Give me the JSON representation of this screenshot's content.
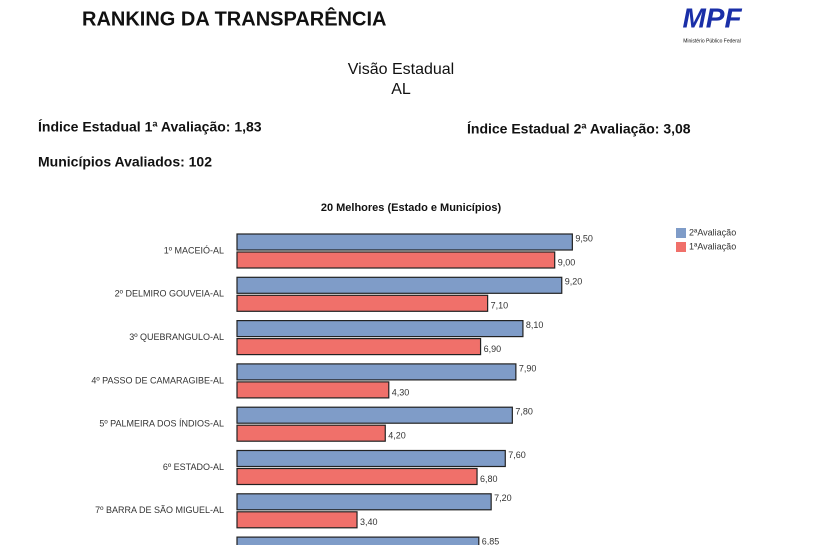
{
  "header": {
    "title": "RANKING DA TRANSPARÊNCIA",
    "logo": "MPF",
    "logo_subtitle": "Ministério Público Federal"
  },
  "summary": {
    "view_title": "Visão Estadual",
    "state": "AL",
    "index_first": "Índice Estadual 1ª Avaliação: 1,83",
    "index_second": "Índice Estadual 2ª Avaliação: 3,08",
    "municipalities": "Municípios Avaliados: 102"
  },
  "chart_data": {
    "type": "hbar",
    "title": "20 Melhores (Estado e Municípios)",
    "categories": [
      "1º MACEIÓ-AL",
      "2º DELMIRO GOUVEIA-AL",
      "3º QUEBRANGULO-AL",
      "4º PASSO DE CAMARAGIBE-AL",
      "5º PALMEIRA DOS ÍNDIOS-AL",
      "6º ESTADO-AL",
      "7º BARRA DE SÃO MIGUEL-AL",
      null
    ],
    "series": [
      {
        "name": "2ªAvaliação",
        "color": "#7f9cc8",
        "values": [
          9.5,
          9.2,
          8.1,
          7.9,
          7.8,
          7.6,
          7.2,
          6.85
        ],
        "value_labels": [
          "9,50",
          "9,20",
          "8,10",
          "7,90",
          "7,80",
          "7,60",
          "7,20",
          "6,85"
        ]
      },
      {
        "name": "1ªAvaliação",
        "color": "#f0706a",
        "values": [
          9.0,
          7.1,
          6.9,
          4.3,
          4.2,
          6.8,
          3.4,
          null
        ],
        "value_labels": [
          "9,00",
          "7,10",
          "6,90",
          "4,30",
          "4,20",
          "6,80",
          "3,40",
          null
        ]
      }
    ],
    "legend": "top-right"
  }
}
